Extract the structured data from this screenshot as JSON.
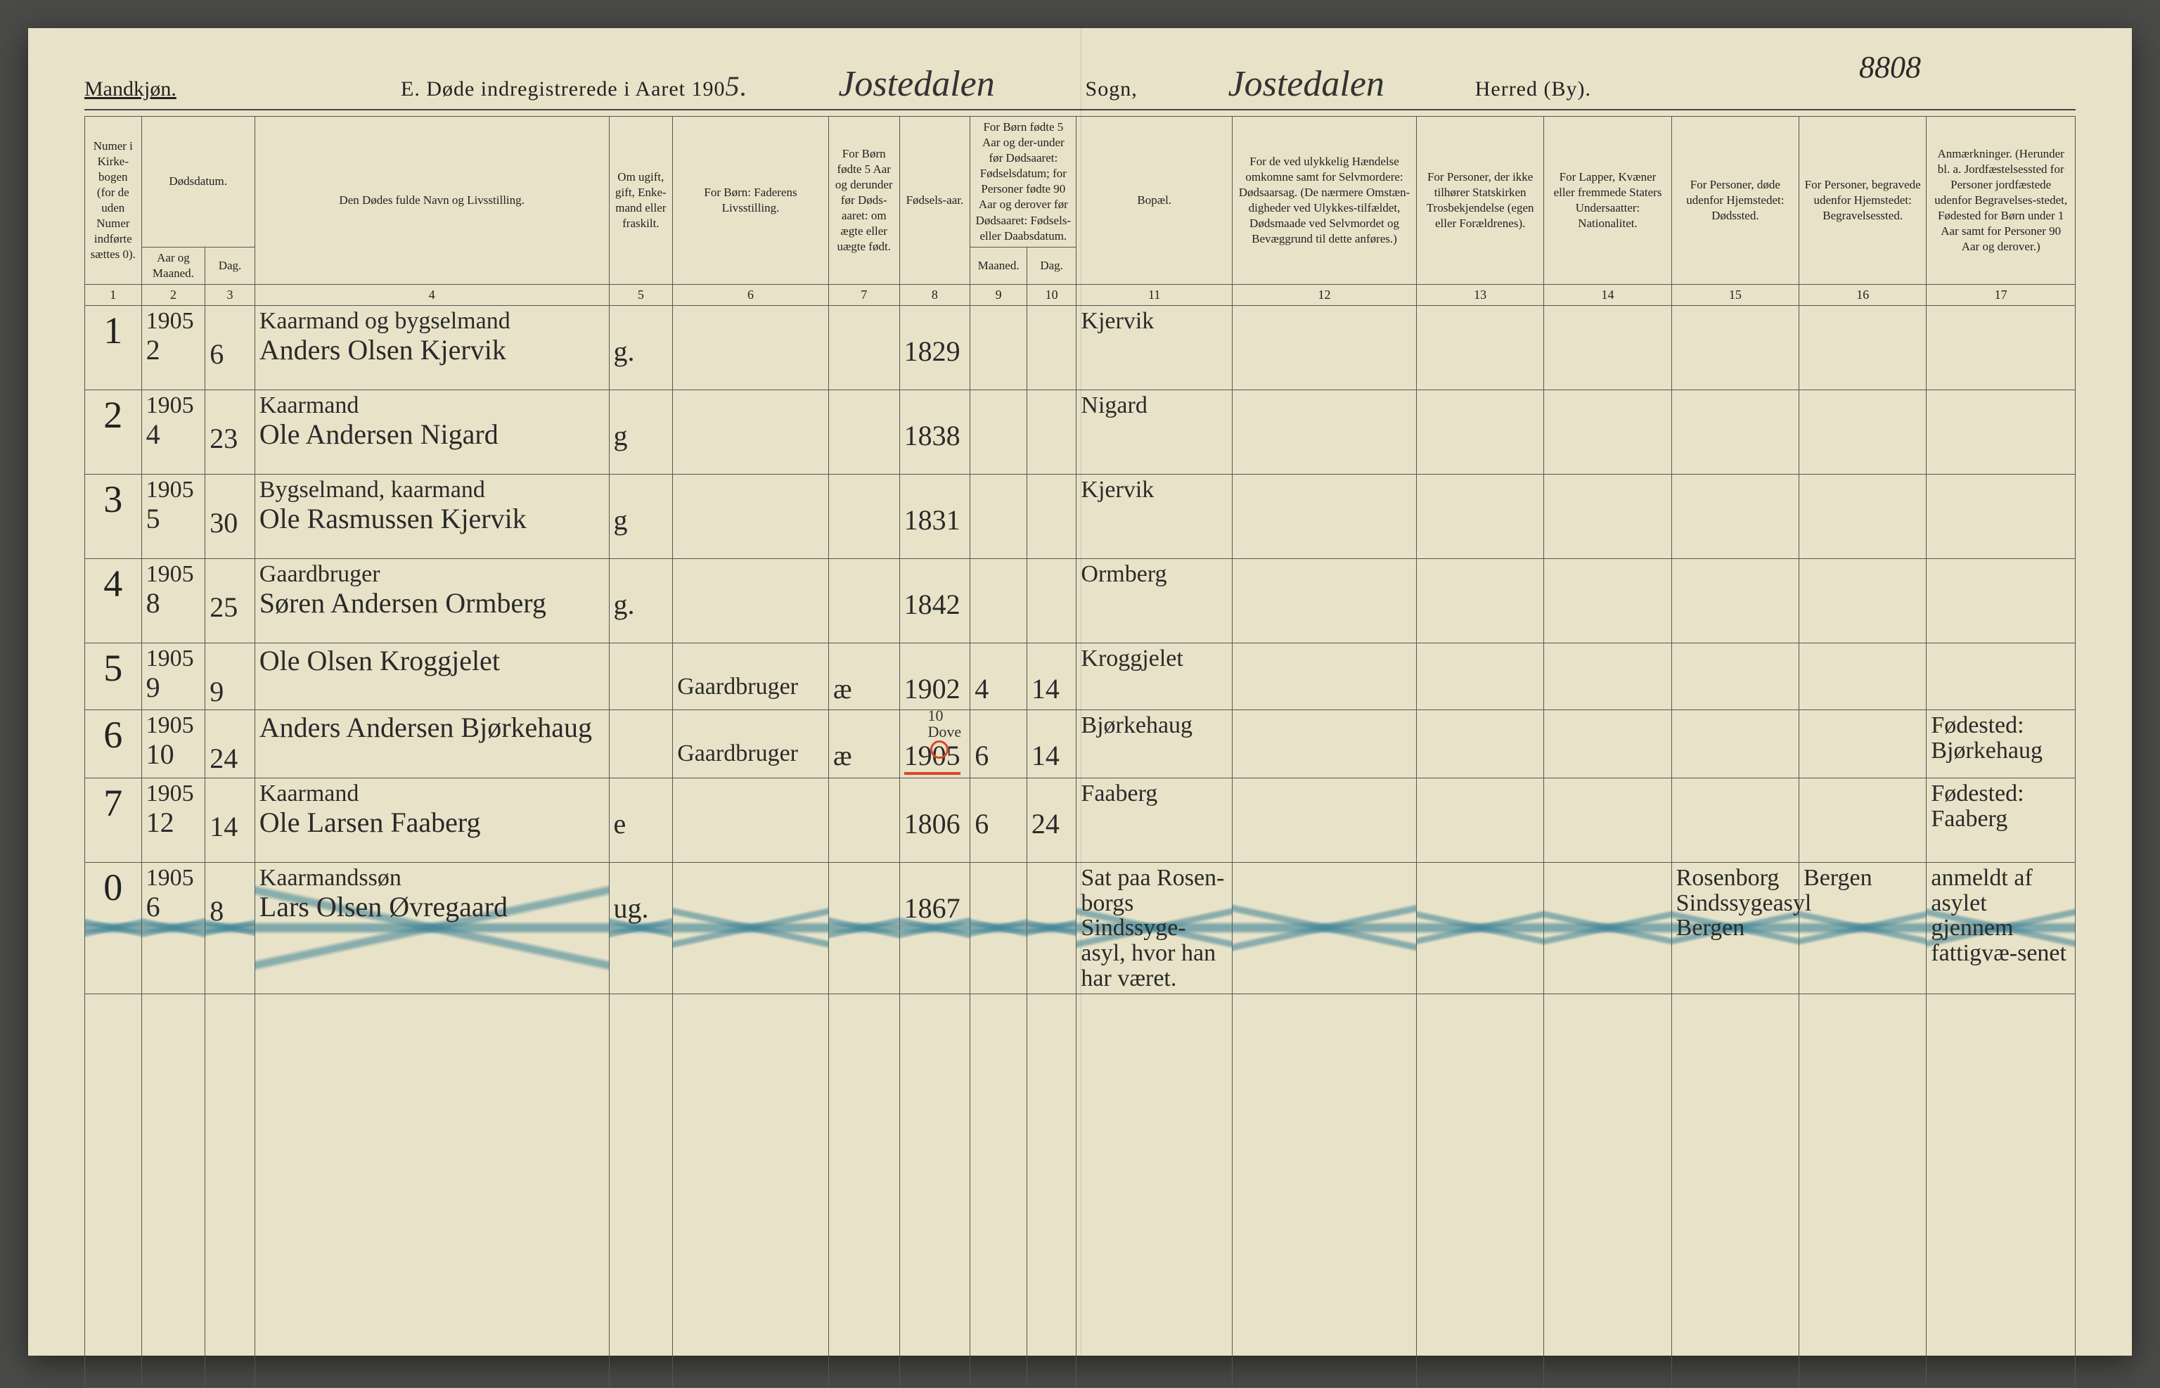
{
  "page_number_top": "8808",
  "header": {
    "gender_heading": "Mandkjøn.",
    "title_prefix": "E.  Døde indregistrerede i Aaret 190",
    "year_suffix_hand": "5.",
    "sogn_hand": "Jostedalen",
    "sogn_label": "Sogn,",
    "herred_hand": "Jostedalen",
    "herred_label": "Herred (By)."
  },
  "columns": {
    "c1": "Numer i Kirke-bogen (for de uden Numer indførte sættes 0).",
    "c2": "Dødsdatum.",
    "c2a": "Aar og Maaned.",
    "c2b": "Dag.",
    "c4": "Den Dødes fulde Navn og Livsstilling.",
    "c5": "Om ugift, gift, Enke-mand eller fraskilt.",
    "c6": "For Børn: Faderens Livsstilling.",
    "c7": "For Børn fødte 5 Aar og derunder før Døds-aaret: om ægte eller uægte født.",
    "c8": "Fødsels-aar.",
    "c9": "For Børn fødte 5 Aar og der-under før Dødsaaret: Fødselsdatum; for Personer fødte 90 Aar og derover før Dødsaaret: Fødsels- eller Daabsdatum.",
    "c9a": "Maaned.",
    "c9b": "Dag.",
    "c11": "Bopæl.",
    "c12": "For de ved ulykkelig Hændelse omkomne samt for Selvmordere: Dødsaarsag. (De nærmere Omstæn-digheder ved Ulykkes-tilfældet, Dødsmaade ved Selvmordet og Bevæggrund til dette anføres.)",
    "c13": "For Personer, der ikke tilhører Statskirken Trosbekjendelse (egen eller Forældrenes).",
    "c14": "For Lapper, Kvæner eller fremmede Staters Undersaatter: Nationalitet.",
    "c15": "For Personer, døde udenfor Hjemstedet: Dødssted.",
    "c16": "For Personer, begravede udenfor Hjemstedet: Begravelsessted.",
    "c17": "Anmærkninger. (Herunder bl. a. Jordfæstelsessted for Personer jordfæstede udenfor Begravelses-stedet, Fødested for Børn under 1 Aar samt for Personer 90 Aar og derover.)"
  },
  "colnums": [
    "1",
    "2",
    "3",
    "4",
    "5",
    "6",
    "7",
    "8",
    "9",
    "10",
    "11",
    "12",
    "13",
    "14",
    "15",
    "16",
    "17"
  ],
  "rows": [
    {
      "n": "1",
      "year": "1905",
      "mon": "2",
      "day": "6",
      "name_line1": "Kaarmand og bygselmand",
      "name_line2": "Anders Olsen Kjervik",
      "civil": "g.",
      "father": "",
      "legit": "",
      "byr": "1829",
      "bmon": "",
      "bday": "",
      "bopael": "Kjervik",
      "c12": "",
      "c13": "",
      "c14": "",
      "c15": "",
      "c16": "",
      "c17": ""
    },
    {
      "n": "2",
      "year": "1905",
      "mon": "4",
      "day": "23",
      "name_line1": "Kaarmand",
      "name_line2": "Ole Andersen Nigard",
      "civil": "g",
      "father": "",
      "legit": "",
      "byr": "1838",
      "bmon": "",
      "bday": "",
      "bopael": "Nigard",
      "c12": "",
      "c13": "",
      "c14": "",
      "c15": "",
      "c16": "",
      "c17": ""
    },
    {
      "n": "3",
      "year": "1905",
      "mon": "5",
      "day": "30",
      "name_line1": "Bygselmand, kaarmand",
      "name_line2": "Ole Rasmussen Kjervik",
      "civil": "g",
      "father": "",
      "legit": "",
      "byr": "1831",
      "bmon": "",
      "bday": "",
      "bopael": "Kjervik",
      "c12": "",
      "c13": "",
      "c14": "",
      "c15": "",
      "c16": "",
      "c17": ""
    },
    {
      "n": "4",
      "year": "1905",
      "mon": "8",
      "day": "25",
      "name_line1": "Gaardbruger",
      "name_line2": "Søren Andersen Ormberg",
      "civil": "g.",
      "father": "",
      "legit": "",
      "byr": "1842",
      "bmon": "",
      "bday": "",
      "bopael": "Ormberg",
      "c12": "",
      "c13": "",
      "c14": "",
      "c15": "",
      "c16": "",
      "c17": ""
    },
    {
      "n": "5",
      "year": "1905",
      "mon": "9",
      "day": "9",
      "name_line1": "",
      "name_line2": "Ole Olsen Kroggjelet",
      "civil": "",
      "father": "Gaardbruger",
      "legit": "æ",
      "byr": "1902",
      "bmon": "4",
      "bday": "14",
      "bopael": "Kroggjelet",
      "c12": "",
      "c13": "",
      "c14": "",
      "c15": "",
      "c16": "",
      "c17": ""
    },
    {
      "n": "6",
      "year": "1905",
      "mon": "10",
      "day": "24",
      "name_line1": "",
      "name_line2": "Anders Andersen Bjørkehaug",
      "civil": "",
      "father": "Gaardbruger",
      "legit": "æ",
      "byr": "1905",
      "bmon": "6",
      "bday": "14",
      "bopael": "Bjørkehaug",
      "c12": "",
      "c13": "",
      "c14": "",
      "c15": "",
      "c16": "",
      "c17": "Fødested: Bjørkehaug",
      "red_underline": true,
      "dove_note": "10 Dove"
    },
    {
      "n": "7",
      "year": "1905",
      "mon": "12",
      "day": "14",
      "name_line1": "Kaarmand",
      "name_line2": "Ole Larsen Faaberg",
      "civil": "e",
      "father": "",
      "legit": "",
      "byr": "1806",
      "bmon": "6",
      "bday": "24",
      "bopael": "Faaberg",
      "c12": "",
      "c13": "",
      "c14": "",
      "c15": "",
      "c16": "",
      "c17": "Fødested: Faaberg"
    },
    {
      "n": "0",
      "year": "1905",
      "mon": "6",
      "day": "8",
      "name_line1": "Kaarmandssøn",
      "name_line2": "Lars Olsen Øvregaard",
      "civil": "ug.",
      "father": "",
      "legit": "",
      "byr": "1867",
      "bmon": "",
      "bday": "",
      "bopael": "Sat paa Rosen-borgs Sindssyge-asyl, hvor han har været.",
      "c12": "",
      "c13": "",
      "c14": "",
      "c15": "Rosenborg Sindssygeasyl Bergen",
      "c16": "Bergen",
      "c17": "anmeldt af asylet gjennem fattigvæ-senet",
      "crossed": true
    }
  ],
  "styling": {
    "paper_color": "#e8e3c8",
    "ink_color": "#2a2a2a",
    "rule_color": "#555555",
    "red_color": "#d9472b",
    "crossout_color": "#4c8695",
    "header_font_size_pt": 22,
    "hand_font_size_pt": 38,
    "hand_font_family": "Brush Script MT, cursive"
  }
}
